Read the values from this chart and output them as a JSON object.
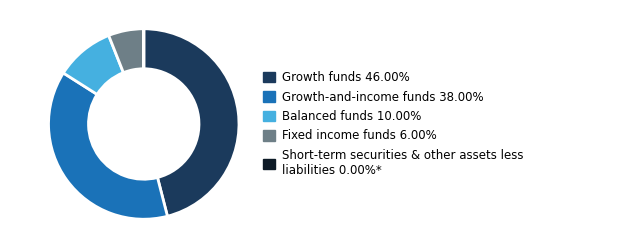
{
  "slices": [
    46.0,
    38.0,
    10.0,
    6.0,
    0.001
  ],
  "colors": [
    "#1b3a5c",
    "#1a72b8",
    "#45b0e0",
    "#6e7f87",
    "#0d1a26"
  ],
  "labels": [
    "Growth funds 46.00%",
    "Growth-and-income funds 38.00%",
    "Balanced funds 10.00%",
    "Fixed income funds 6.00%",
    "Short-term securities & other assets less\nliabilities 0.00%*"
  ],
  "legend_colors": [
    "#1b3a5c",
    "#1a72b8",
    "#45b0e0",
    "#6e7f87",
    "#0d1a26"
  ],
  "background_color": "#ffffff",
  "start_angle": 90,
  "donut_width": 0.42,
  "edge_color": "#ffffff",
  "edge_linewidth": 2.0,
  "font_size": 8.5
}
